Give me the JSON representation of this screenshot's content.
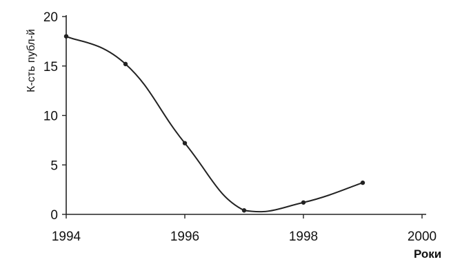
{
  "chart_data": {
    "type": "line",
    "title": "",
    "xlabel": "Роки",
    "ylabel": "К-сть публ-й",
    "xlim": [
      1994,
      2000
    ],
    "ylim": [
      0,
      20
    ],
    "x_ticks": [
      1994,
      1996,
      1998,
      2000
    ],
    "y_ticks": [
      0,
      5,
      10,
      15,
      20
    ],
    "grid": false,
    "legend": "none",
    "series": [
      {
        "x": [
          1994,
          1995,
          1996,
          1997,
          1998,
          1999
        ],
        "y": [
          18,
          15.2,
          7.2,
          0.4,
          1.2,
          3.2
        ],
        "smoothed": true,
        "color": "#222222"
      }
    ]
  }
}
